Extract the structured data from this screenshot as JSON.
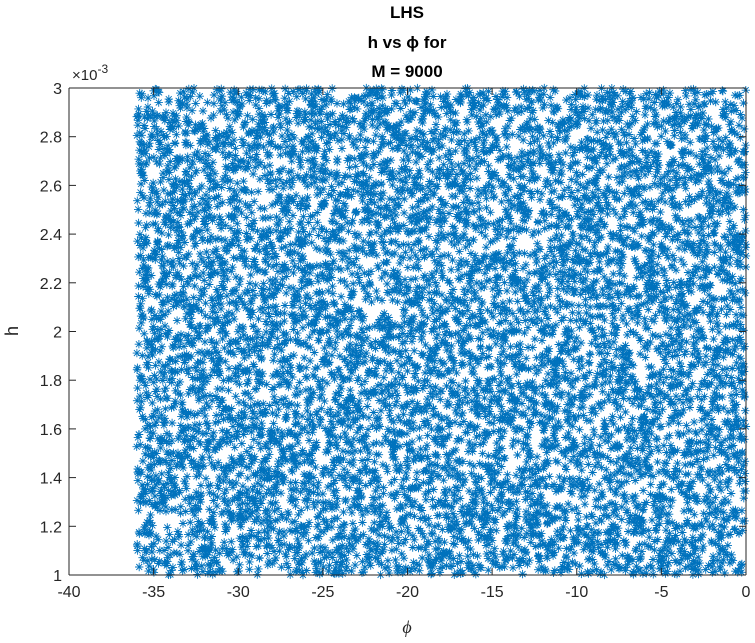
{
  "chart_data": {
    "type": "scatter",
    "title_lines": [
      "LHS",
      "h vs ϕ for",
      "M = 9000"
    ],
    "xlabel": "ϕ",
    "ylabel": "h",
    "y_exponent_label": "×10",
    "y_exponent_power": "-3",
    "xlim": [
      -40,
      0
    ],
    "ylim": [
      0.001,
      0.003
    ],
    "x_ticks": [
      -40,
      -35,
      -30,
      -25,
      -20,
      -15,
      -10,
      -5,
      0
    ],
    "x_tick_labels": [
      "-40",
      "-35",
      "-30",
      "-25",
      "-20",
      "-15",
      "-10",
      "-5",
      "0"
    ],
    "y_ticks": [
      0.001,
      0.0012,
      0.0014,
      0.0016,
      0.0018,
      0.002,
      0.0022,
      0.0024,
      0.0026,
      0.0028,
      0.003
    ],
    "y_tick_labels": [
      "1",
      "1.2",
      "1.4",
      "1.6",
      "1.8",
      "2",
      "2.2",
      "2.4",
      "2.6",
      "2.8",
      "3"
    ],
    "grid": false,
    "marker": "asterisk",
    "marker_color": "#0072BD",
    "series": [
      {
        "n_points": 9000,
        "sampling": "latin hypercube, uniform",
        "x_range": [
          -36,
          0
        ],
        "y_range": [
          0.001,
          0.003
        ]
      }
    ]
  }
}
